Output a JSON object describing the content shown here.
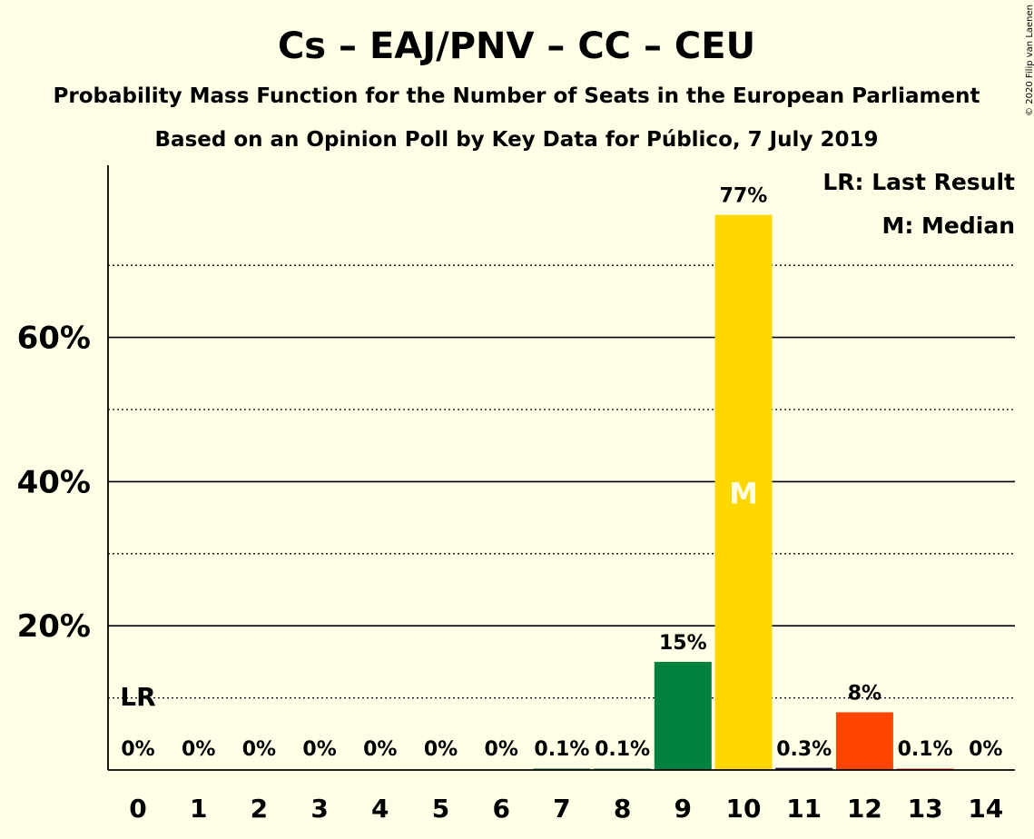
{
  "chart_data": {
    "type": "bar",
    "title": "Cs – EAJ/PNV – CC – CEU",
    "subtitle": "Probability Mass Function for the Number of Seats in the European Parliament",
    "subtitle2": "Based on an Opinion Poll by Key Data for Público, 7 July 2019",
    "copyright": "© 2020 Filip van Laenen",
    "categories": [
      "0",
      "1",
      "2",
      "3",
      "4",
      "5",
      "6",
      "7",
      "8",
      "9",
      "10",
      "11",
      "12",
      "13",
      "14"
    ],
    "values": [
      0,
      0,
      0,
      0,
      0,
      0,
      0,
      0.1,
      0.1,
      15,
      77,
      0.3,
      8,
      0.1,
      0
    ],
    "value_labels": [
      "0%",
      "0%",
      "0%",
      "0%",
      "0%",
      "0%",
      "0%",
      "0.1%",
      "0.1%",
      "15%",
      "77%",
      "0.3%",
      "8%",
      "0.1%",
      "0%"
    ],
    "bar_colors": [
      "#008140",
      "#008140",
      "#008140",
      "#008140",
      "#008140",
      "#008140",
      "#008140",
      "#008140",
      "#008140",
      "#008140",
      "#FFD700",
      "#2B1B40",
      "#FF4500",
      "#FF4500",
      "#FF4500"
    ],
    "ylim": [
      0,
      84
    ],
    "yticks": [
      {
        "value": 20,
        "label": "20%"
      },
      {
        "value": 40,
        "label": "40%"
      },
      {
        "value": 60,
        "label": "60%"
      }
    ],
    "minor_grid": [
      10,
      30,
      50,
      70
    ],
    "last_result_seat": 0,
    "last_result_marker": "LR",
    "median_seat": 10,
    "median_marker": "M",
    "legend": {
      "position": "top-right",
      "items": [
        "LR: Last Result",
        "M: Median"
      ]
    },
    "grid": true
  }
}
